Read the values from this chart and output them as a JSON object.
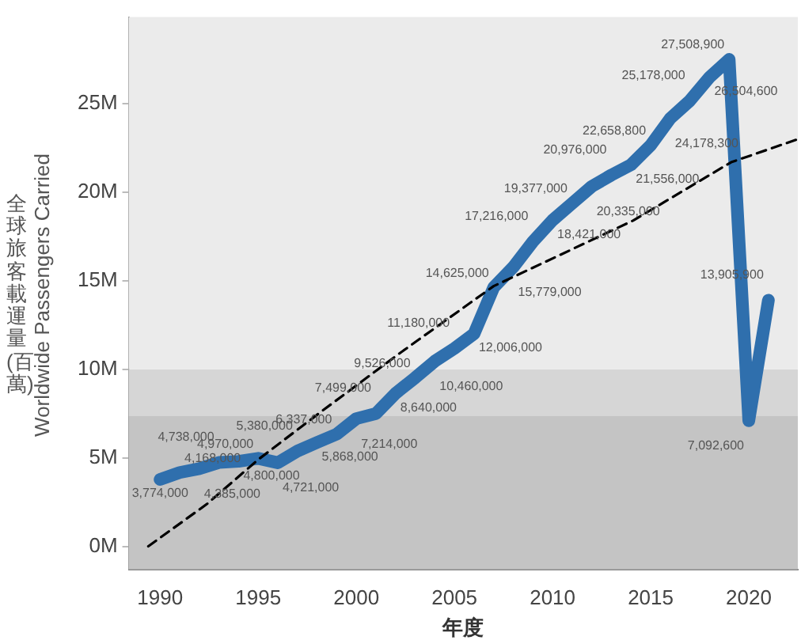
{
  "chart_data": {
    "type": "line",
    "xlabel": "年度",
    "ylabel": "全球旅客載運量(百萬)\nWorldwide Passengers Carried",
    "x": [
      1990,
      1991,
      1992,
      1993,
      1994,
      1995,
      1996,
      1997,
      1998,
      1999,
      2000,
      2001,
      2002,
      2003,
      2004,
      2005,
      2006,
      2007,
      2008,
      2009,
      2010,
      2011,
      2012,
      2013,
      2014,
      2015,
      2016,
      2017,
      2018,
      2019,
      2020,
      2021
    ],
    "series": [
      {
        "color": "#2f6fad",
        "values": [
          3774000,
          4168000,
          4385000,
          4738000,
          4800000,
          4970000,
          4721000,
          5380000,
          5868000,
          6337000,
          7214000,
          7499000,
          8640000,
          9526000,
          10460000,
          11180000,
          12006000,
          14625000,
          15779000,
          17216000,
          18421000,
          19377000,
          20335000,
          20976000,
          21556000,
          22658800,
          24178300,
          25178000,
          26504600,
          27508900,
          7092600,
          13905900
        ],
        "value_labels": [
          "3,774,000",
          "4,168,000",
          "4,385,000",
          "4,738,000",
          "4,800,000",
          "4,970,000",
          "4,721,000",
          "5,380,000",
          "5,868,000",
          "6,337,000",
          "7,214,000",
          "7,499,000",
          "8,640,000",
          "9,526,000",
          "10,460,000",
          "11,180,000",
          "12,006,000",
          "14,625,000",
          "15,779,000",
          "17,216,000",
          "18,421,000",
          "19,377,000",
          "20,335,000",
          "20,976,000",
          "21,556,000",
          "22,658,800",
          "24,178,300",
          "25,178,000",
          "26,504,600",
          "27,508,900",
          "7,092,600",
          "13,905,900"
        ]
      },
      {
        "type": "line",
        "color": "#000000",
        "line_style": "dashed",
        "x": [
          1989.4,
          1992.4,
          1995,
          1998.2,
          2002.2,
          2007,
          2014.1,
          2019.1,
          2022.5
        ],
        "values": [
          0,
          2400000,
          4900000,
          7600000,
          10900000,
          14700000,
          18400000,
          21700000,
          23000000
        ]
      }
    ],
    "bands": [
      {
        "axis": "y",
        "from": -1300000,
        "to": 7350000,
        "color": "#c4c4c4"
      },
      {
        "axis": "y",
        "from": 7350000,
        "to": 10000000,
        "color": "#d6d6d6"
      },
      {
        "axis": "y",
        "from": 10000000,
        "to": 29900000,
        "color": "#ebebeb"
      }
    ],
    "xlim": [
      1988.4,
      2022.5
    ],
    "xticks": [
      1990,
      1995,
      2000,
      2005,
      2010,
      2015,
      2020
    ],
    "ylim": [
      -1300000,
      29900000
    ],
    "yticks": [
      {
        "value": 0,
        "label": "0M"
      },
      {
        "value": 5000000,
        "label": "5M"
      },
      {
        "value": 10000000,
        "label": "10M"
      },
      {
        "value": 15000000,
        "label": "15M"
      },
      {
        "value": 20000000,
        "label": "20M"
      },
      {
        "value": 25000000,
        "label": "25M"
      }
    ],
    "grid": false,
    "legend": false,
    "marker": "none"
  }
}
